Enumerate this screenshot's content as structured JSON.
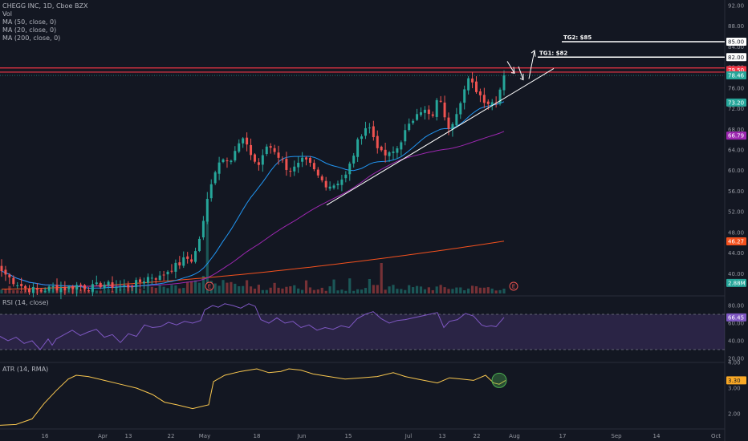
{
  "legend": {
    "main": [
      {
        "text": "CHEGG INC, 1D, Cboe BZX"
      },
      {
        "text": "Vol"
      },
      {
        "text": "MA (50, close, 0)"
      },
      {
        "text": "MA (20, close, 0)"
      },
      {
        "text": "MA (200, close, 0)"
      }
    ],
    "rsi": "RSI (14, close)",
    "atr": "ATR (14, RMA)"
  },
  "chart_data": {
    "type": "candlestick",
    "x_tick_labels": [
      "16",
      "Apr",
      "13",
      "22",
      "May",
      "18",
      "Jun",
      "15",
      "Jul",
      "13",
      "22",
      "Aug",
      "17",
      "Sep",
      "14",
      "Oct"
    ],
    "price_axis": {
      "range": [
        36,
        92
      ],
      "tick_labels": [
        "92.00",
        "88.00",
        "84.00",
        "80.00",
        "76.00",
        "72.00",
        "68.00",
        "64.00",
        "60.00",
        "56.00",
        "52.00",
        "48.00",
        "44.00",
        "40.00"
      ],
      "ticks": [
        92,
        88,
        84,
        80,
        76,
        72,
        68,
        64,
        60,
        56,
        52,
        48,
        44,
        40
      ]
    },
    "price_tags": [
      {
        "label": "85.00",
        "value": 85.0,
        "color": "#ffffff",
        "text_color": "#131722"
      },
      {
        "label": "82.00",
        "value": 82.0,
        "color": "#ffffff",
        "text_color": "#131722"
      },
      {
        "label": "79.50",
        "value": 79.5,
        "color": "#f23645",
        "text_color": "#ffffff"
      },
      {
        "label": "78.46",
        "value": 78.46,
        "color": "#26a69a",
        "text_color": "#ffffff"
      },
      {
        "label": "73.20",
        "value": 73.2,
        "color": "#26a69a",
        "text_color": "#ffffff"
      },
      {
        "label": "66.79",
        "value": 66.79,
        "color": "#9c27b0",
        "text_color": "#ffffff"
      },
      {
        "label": "46.27",
        "value": 46.27,
        "color": "#f4511e",
        "text_color": "#ffffff"
      },
      {
        "label": "2.88M",
        "value": 38.2,
        "color": "#26a69a",
        "text_color": "#ffffff"
      }
    ],
    "targets": [
      {
        "label": "TG1: $82",
        "value": 82.0
      },
      {
        "label": "TG2: $85",
        "value": 85.0
      }
    ],
    "resistance_lines": [
      79.9,
      79.1
    ],
    "support_line": {
      "from": [
        407,
        53.3
      ],
      "to": [
        690,
        79.8
      ]
    },
    "earnings_markers": [
      {
        "text": "E"
      },
      {
        "text": "E"
      }
    ],
    "candles_approx": "~128 daily candles, mid-March to end of July, close rising from ~37 to ~78.5",
    "rsi": {
      "range": [
        15,
        90
      ],
      "tick_labels": [
        "80.00",
        "60.00",
        "40.00",
        "20.00"
      ],
      "ticks": [
        80,
        60,
        40,
        20
      ],
      "bands": [
        70,
        30
      ],
      "last": {
        "label": "66.45",
        "value": 66.45,
        "color": "#7e57c2"
      }
    },
    "atr": {
      "range": [
        1.4,
        4.1
      ],
      "tick_labels": [
        "4.00",
        "3.00",
        "2.00"
      ],
      "ticks": [
        4.0,
        3.0,
        2.0
      ],
      "last": {
        "label": "3.30",
        "value": 3.3,
        "color": "#f9a825"
      }
    }
  }
}
